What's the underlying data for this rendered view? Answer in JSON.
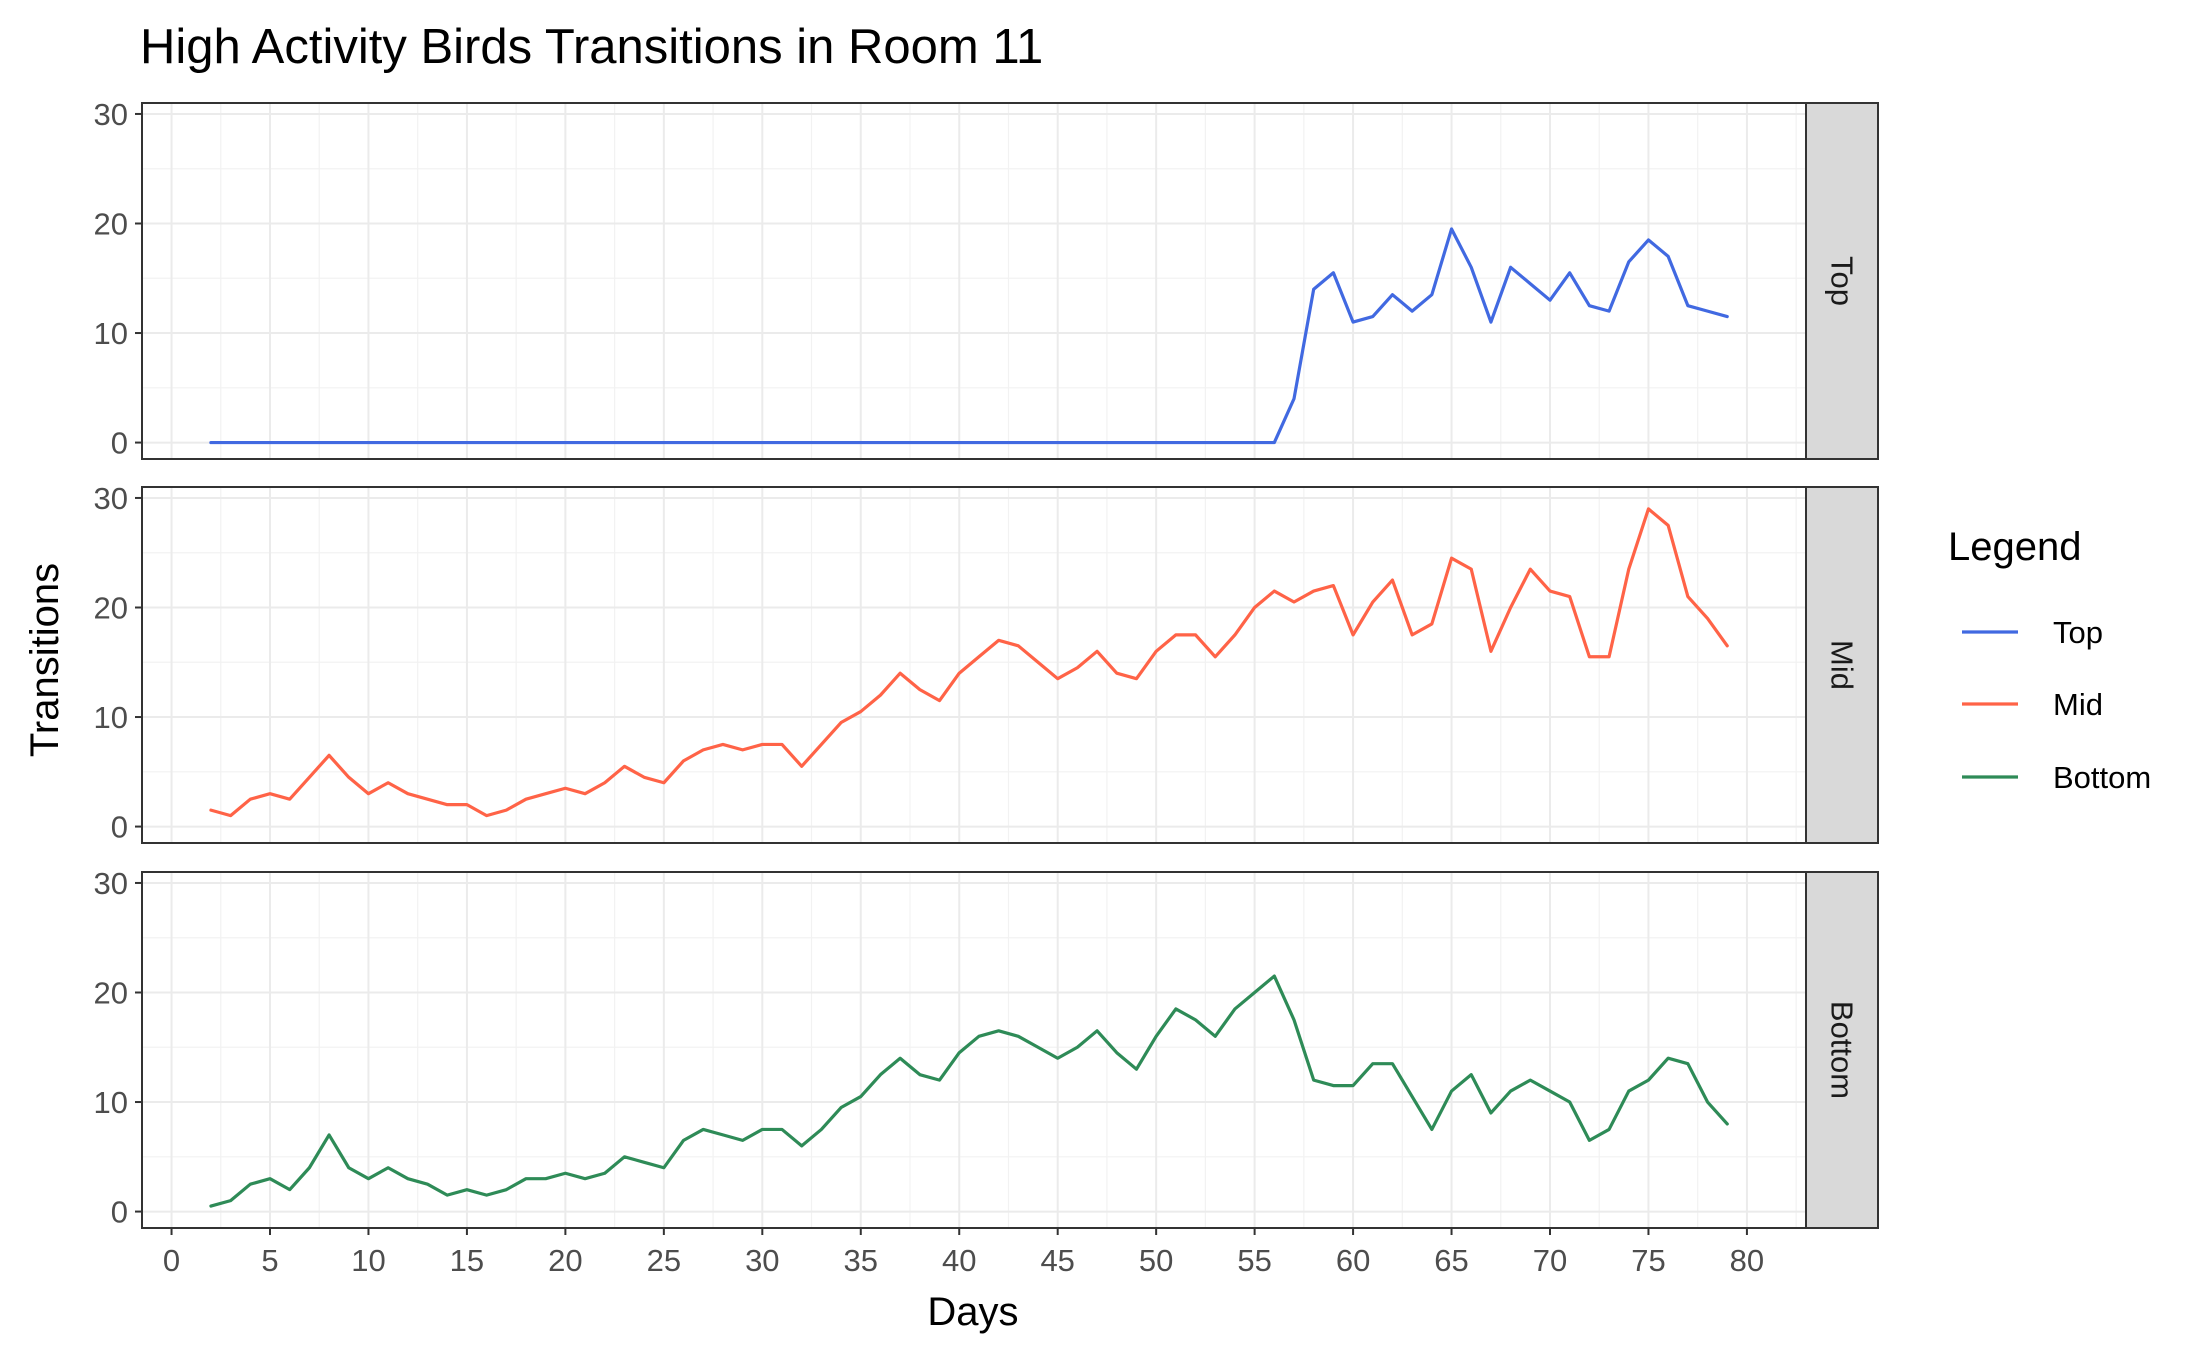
{
  "chart_data": {
    "type": "line",
    "title": "High Activity Birds Transitions in Room 11",
    "xlabel": "Days",
    "ylabel": "Transitions",
    "xlim": [
      -1.5,
      83
    ],
    "ylim": [
      -1.5,
      31
    ],
    "x_ticks": [
      0,
      5,
      10,
      15,
      20,
      25,
      30,
      35,
      40,
      45,
      50,
      55,
      60,
      65,
      70,
      75,
      80
    ],
    "y_ticks": [
      0,
      10,
      20,
      30
    ],
    "grid": true,
    "facets": [
      "Top",
      "Mid",
      "Bottom"
    ],
    "legend": {
      "title": "Legend",
      "position": "right",
      "entries": [
        "Top",
        "Mid",
        "Bottom"
      ]
    },
    "x": [
      2,
      3,
      4,
      5,
      6,
      7,
      8,
      9,
      10,
      11,
      12,
      13,
      14,
      15,
      16,
      17,
      18,
      19,
      20,
      21,
      22,
      23,
      24,
      25,
      26,
      27,
      28,
      29,
      30,
      31,
      32,
      33,
      34,
      35,
      36,
      37,
      38,
      39,
      40,
      41,
      42,
      43,
      44,
      45,
      46,
      47,
      48,
      49,
      50,
      51,
      52,
      53,
      54,
      55,
      56,
      57,
      58,
      59,
      60,
      61,
      62,
      63,
      64,
      65,
      66,
      67,
      68,
      69,
      70,
      71,
      72,
      73,
      74,
      75,
      76,
      77,
      78,
      79
    ],
    "series": [
      {
        "name": "Top",
        "color": "#4169E1",
        "values": [
          0,
          0,
          0,
          0,
          0,
          0,
          0,
          0,
          0,
          0,
          0,
          0,
          0,
          0,
          0,
          0,
          0,
          0,
          0,
          0,
          0,
          0,
          0,
          0,
          0,
          0,
          0,
          0,
          0,
          0,
          0,
          0,
          0,
          0,
          0,
          0,
          0,
          0,
          0,
          0,
          0,
          0,
          0,
          0,
          0,
          0,
          0,
          0,
          0,
          0,
          0,
          0,
          0,
          0,
          0,
          4,
          14,
          15.5,
          11,
          11.5,
          13.5,
          12,
          13.5,
          19.5,
          16,
          11,
          16,
          14.5,
          13,
          15.5,
          12.5,
          12,
          16.5,
          18.5,
          17,
          12.5,
          12,
          11.5
        ]
      },
      {
        "name": "Mid",
        "color": "#FF6347",
        "values": [
          1.5,
          1,
          2.5,
          3,
          2.5,
          4.5,
          6.5,
          4.5,
          3,
          4,
          3,
          2.5,
          2,
          2,
          1,
          1.5,
          2.5,
          3,
          3.5,
          3,
          4,
          5.5,
          4.5,
          4,
          6,
          7,
          7.5,
          7,
          7.5,
          7.5,
          5.5,
          7.5,
          9.5,
          10.5,
          12,
          14,
          12.5,
          11.5,
          14,
          15.5,
          17,
          16.5,
          15,
          13.5,
          14.5,
          16,
          14,
          13.5,
          16,
          17.5,
          17.5,
          15.5,
          17.5,
          20,
          21.5,
          20.5,
          21.5,
          22,
          17.5,
          20.5,
          22.5,
          17.5,
          18.5,
          24.5,
          23.5,
          16,
          20,
          23.5,
          21.5,
          21,
          15.5,
          15.5,
          23.5,
          29,
          27.5,
          21,
          19,
          16.5
        ]
      },
      {
        "name": "Bottom",
        "color": "#2E8B57",
        "values": [
          0.5,
          1,
          2.5,
          3,
          2,
          4,
          7,
          4,
          3,
          4,
          3,
          2.5,
          1.5,
          2,
          1.5,
          2,
          3,
          3,
          3.5,
          3,
          3.5,
          5,
          4.5,
          4,
          6.5,
          7.5,
          7,
          6.5,
          7.5,
          7.5,
          6,
          7.5,
          9.5,
          10.5,
          12.5,
          14,
          12.5,
          12,
          14.5,
          16,
          16.5,
          16,
          15,
          14,
          15,
          16.5,
          14.5,
          13,
          16,
          18.5,
          17.5,
          16,
          18.5,
          20,
          21.5,
          17.5,
          12,
          11.5,
          11.5,
          13.5,
          13.5,
          10.5,
          7.5,
          11,
          12.5,
          9,
          11,
          12,
          11,
          10,
          6.5,
          7.5,
          11,
          12,
          14,
          13.5,
          10,
          8
        ]
      }
    ]
  }
}
